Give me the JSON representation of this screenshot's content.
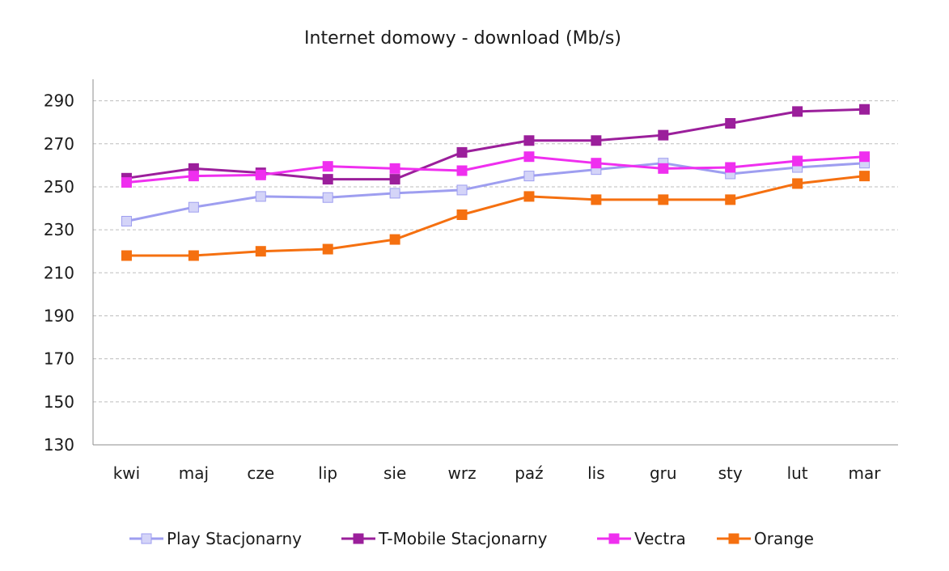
{
  "chart_data": {
    "type": "line",
    "title": "Internet domowy - download (Mb/s)",
    "categories": [
      "kwi",
      "maj",
      "cze",
      "lip",
      "sie",
      "wrz",
      "paź",
      "lis",
      "gru",
      "sty",
      "lut",
      "mar"
    ],
    "ylim": [
      130,
      300
    ],
    "yticks": [
      130,
      150,
      170,
      190,
      210,
      230,
      250,
      270,
      290
    ],
    "grid": true,
    "legend": "bottom",
    "series": [
      {
        "name": "Play Stacjonarny",
        "color": "#9e9ef0",
        "fill": "#d4d4f8",
        "values": [
          234,
          240.5,
          245.5,
          245,
          247,
          248.5,
          255,
          258,
          261,
          256,
          259,
          261
        ]
      },
      {
        "name": "T-Mobile Stacjonarny",
        "color": "#9b1f9b",
        "fill": "#9b1f9b",
        "values": [
          254,
          258.5,
          256.5,
          253.5,
          253.5,
          266,
          271.5,
          271.5,
          274,
          279.5,
          285,
          286
        ]
      },
      {
        "name": "Vectra",
        "color": "#ef2fef",
        "fill": "#ef2fef",
        "values": [
          252,
          255,
          255.5,
          259.5,
          258.5,
          257.5,
          264,
          261,
          258.5,
          259,
          262,
          264
        ]
      },
      {
        "name": "Orange",
        "color": "#f57010",
        "fill": "#f57010",
        "values": [
          218,
          218,
          220,
          221,
          225.5,
          237,
          245.5,
          244,
          244,
          244,
          251.5,
          255
        ]
      }
    ]
  }
}
